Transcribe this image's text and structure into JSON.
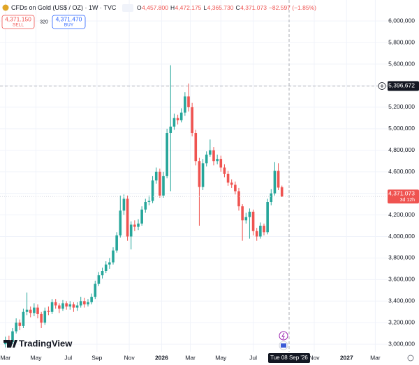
{
  "chart_data": {
    "type": "candlestick",
    "title": "CFDs on Gold (US$ / OZ) · 1W · TVC",
    "legend": {
      "o_label": "O",
      "o": "4,457.800",
      "h_label": "H",
      "h": "4,472.175",
      "l_label": "L",
      "l": "4,365.730",
      "c_label": "C",
      "c": "4,371.073",
      "change": "−82.597 (−1.85%)"
    },
    "trade": {
      "sell_price": "4,371.150",
      "sell": "SELL",
      "spread": "320",
      "buy_price": "4,371.470",
      "buy": "BUY"
    },
    "up_color": "#26a69a",
    "down_color": "#ef5350",
    "open": [
      3000000,
      3040000,
      3020000,
      3120000,
      3200000,
      3170000,
      3300000,
      3320000,
      3290000,
      3340000,
      3280000,
      3200000,
      3310000,
      3300000,
      3390000,
      3360000,
      3330000,
      3380000,
      3350000,
      3370000,
      3340000,
      3360000,
      3400000,
      3370000,
      3390000,
      3440000,
      3560000,
      3640000,
      3680000,
      3740000,
      3760000,
      3870000,
      4010000,
      4240000,
      4350000,
      4000000,
      4110000,
      4090000,
      4120000,
      4250000,
      4320000,
      4330000,
      4520000,
      4600000,
      4380000,
      4560000,
      4960000,
      5020000,
      5100000,
      5080000,
      5150000,
      5300000,
      5200000,
      4960000,
      4700000,
      4460000,
      4680000,
      4760000,
      4800000,
      4700000,
      4720000,
      4640000,
      4580000,
      4500000,
      4480000,
      4420000,
      4280000,
      4150000,
      4180000,
      4230000,
      4050000,
      4000000,
      4100000,
      4040000,
      4320000,
      4400000,
      4610000,
      4457800
    ],
    "high": [
      3070000,
      3080000,
      3150000,
      3240000,
      3230000,
      3330000,
      3480000,
      3350000,
      3380000,
      3370000,
      3300000,
      3340000,
      3350000,
      3420000,
      3420000,
      3380000,
      3410000,
      3400000,
      3400000,
      3390000,
      3390000,
      3440000,
      3430000,
      3420000,
      3470000,
      3590000,
      3670000,
      3710000,
      3770000,
      3800000,
      3900000,
      4040000,
      4380000,
      4390000,
      4380000,
      4140000,
      4150000,
      4160000,
      4280000,
      4350000,
      4380000,
      4560000,
      4640000,
      4630000,
      4600000,
      5000000,
      5590000,
      5140000,
      5130000,
      5190000,
      5340000,
      5420000,
      5240000,
      4990000,
      4730000,
      4720000,
      4790000,
      4900000,
      4830000,
      4760000,
      4750000,
      4670000,
      4610000,
      4530000,
      4510000,
      4450000,
      4300000,
      4220000,
      4260000,
      4250000,
      4080000,
      4130000,
      4120000,
      4350000,
      4440000,
      4690000,
      4680000,
      4472175
    ],
    "low": [
      2970000,
      2990000,
      3000000,
      3100000,
      3130000,
      3150000,
      3270000,
      3250000,
      3260000,
      3240000,
      3150000,
      3180000,
      3270000,
      3280000,
      3330000,
      3290000,
      3310000,
      3320000,
      3320000,
      3300000,
      3310000,
      3340000,
      3340000,
      3350000,
      3370000,
      3420000,
      3540000,
      3610000,
      3660000,
      3700000,
      3740000,
      3850000,
      3990000,
      4200000,
      3960000,
      3880000,
      4050000,
      4060000,
      4100000,
      4220000,
      4290000,
      4310000,
      4490000,
      4360000,
      4360000,
      4540000,
      4420000,
      4990000,
      5040000,
      5060000,
      5120000,
      5160000,
      4930000,
      4660000,
      4100000,
      4430000,
      4650000,
      4740000,
      4660000,
      4670000,
      4600000,
      4550000,
      4470000,
      4450000,
      4390000,
      4240000,
      3960000,
      4120000,
      3980000,
      4010000,
      3960000,
      3980000,
      4010000,
      4020000,
      4290000,
      4380000,
      4430000,
      4365730
    ],
    "close": [
      3040000,
      3020000,
      3120000,
      3200000,
      3170000,
      3300000,
      3320000,
      3290000,
      3340000,
      3280000,
      3200000,
      3310000,
      3300000,
      3390000,
      3360000,
      3330000,
      3380000,
      3350000,
      3370000,
      3340000,
      3360000,
      3400000,
      3370000,
      3390000,
      3440000,
      3560000,
      3640000,
      3680000,
      3740000,
      3760000,
      3870000,
      4010000,
      4240000,
      4350000,
      4000000,
      4110000,
      4090000,
      4120000,
      4250000,
      4320000,
      4330000,
      4520000,
      4600000,
      4380000,
      4560000,
      4960000,
      5020000,
      5100000,
      5080000,
      5150000,
      5300000,
      5200000,
      4960000,
      4700000,
      4460000,
      4680000,
      4760000,
      4800000,
      4700000,
      4720000,
      4640000,
      4580000,
      4500000,
      4480000,
      4420000,
      4280000,
      4150000,
      4180000,
      4230000,
      4050000,
      4000000,
      4100000,
      4040000,
      4320000,
      4400000,
      4610000,
      4453670,
      4371073
    ],
    "xlim": [
      -1.5,
      103.5
    ],
    "xticks": [
      {
        "value": 0,
        "label": "Mar"
      },
      {
        "value": 8.5,
        "label": "May"
      },
      {
        "value": 17.5,
        "label": "Jul"
      },
      {
        "value": 25.5,
        "label": "Sep"
      },
      {
        "value": 34.5,
        "label": "Nov"
      },
      {
        "value": 43.5,
        "label": "2026"
      },
      {
        "value": 51.5,
        "label": "Mar"
      },
      {
        "value": 60,
        "label": "May"
      },
      {
        "value": 69,
        "label": "Jul"
      },
      {
        "value": 86,
        "label": "Nov"
      },
      {
        "value": 95,
        "label": "2027"
      },
      {
        "value": 103,
        "label": "Mar"
      }
    ],
    "ylim": [
      2930000,
      6195000
    ],
    "yticks": [
      {
        "value": 3000000,
        "label": "3,000,000"
      },
      {
        "value": 3200000,
        "label": "3,200,000"
      },
      {
        "value": 3400000,
        "label": "3,400,000"
      },
      {
        "value": 3600000,
        "label": "3,600,000"
      },
      {
        "value": 3800000,
        "label": "3,800,000"
      },
      {
        "value": 4000000,
        "label": "4,000,000"
      },
      {
        "value": 4200000,
        "label": "4,200,000"
      },
      {
        "value": 4400000,
        "label": "4,400,000"
      },
      {
        "value": 4600000,
        "label": "4,600,000"
      },
      {
        "value": 4800000,
        "label": "4,800,000"
      },
      {
        "value": 5000000,
        "label": "5,000,000"
      },
      {
        "value": 5200000,
        "label": "5,200,000"
      },
      {
        "value": 5400000,
        "label": "5,400,000"
      },
      {
        "value": 5600000,
        "label": "5,600,000"
      },
      {
        "value": 5800000,
        "label": "5,800,000"
      },
      {
        "value": 6000000,
        "label": "6,000,000"
      }
    ],
    "grid": true,
    "last_price": {
      "label": "4,371.073",
      "countdown": "3d 12h"
    },
    "crosshair": {
      "y": {
        "value": 5396672,
        "label": "5,396,672"
      },
      "x": {
        "value": 79,
        "label": "Tue 08 Sep '26"
      }
    },
    "brand": "TradingView"
  }
}
